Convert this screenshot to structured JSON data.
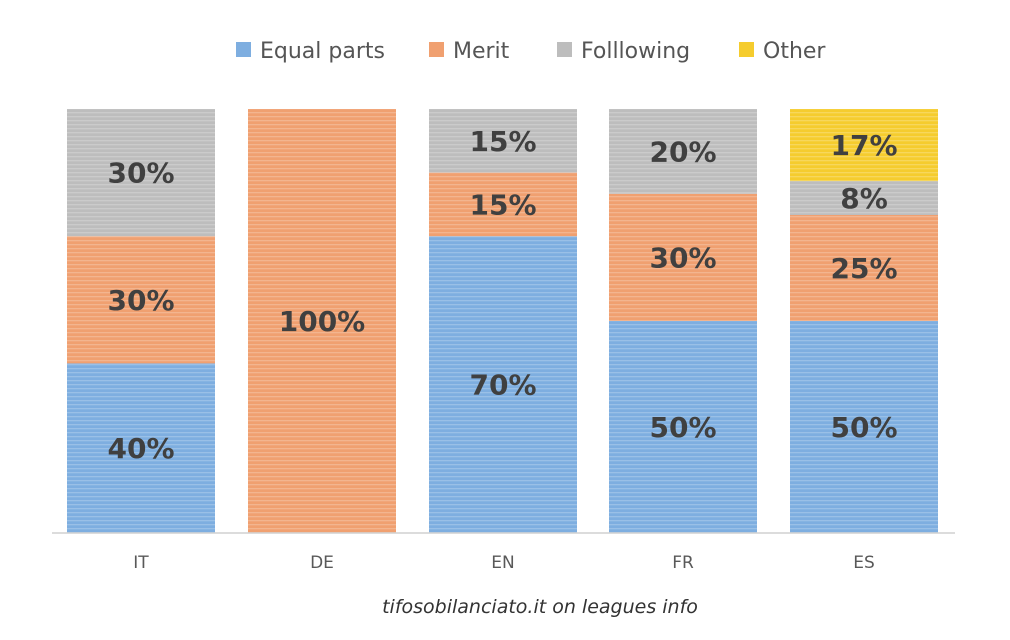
{
  "chart_data": {
    "type": "bar",
    "stacked": true,
    "categories": [
      "IT",
      "DE",
      "EN",
      "FR",
      "ES"
    ],
    "series": [
      {
        "name": "Equal parts",
        "color": "#7eaee0",
        "values": [
          40,
          0,
          70,
          50,
          50
        ]
      },
      {
        "name": "Merit",
        "color": "#f0a070",
        "values": [
          30,
          100,
          15,
          30,
          25
        ]
      },
      {
        "name": "Folllowing",
        "color": "#bdbdbd",
        "values": [
          30,
          0,
          15,
          20,
          8
        ]
      },
      {
        "name": "Other",
        "color": "#f5cc2e",
        "values": [
          0,
          0,
          0,
          0,
          17
        ]
      }
    ],
    "ylim": [
      0,
      100
    ],
    "value_suffix": "%",
    "legend_position": "top",
    "grid": false,
    "caption": "tifosobilanciato.it on leagues info"
  }
}
